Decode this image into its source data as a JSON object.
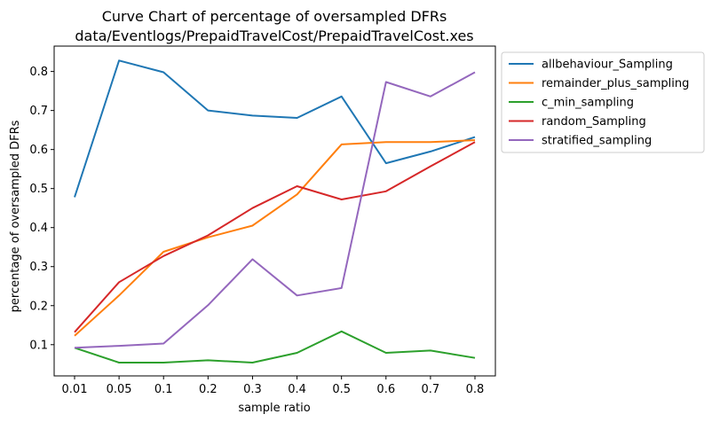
{
  "chart_data": {
    "type": "line",
    "title": "Curve Chart of percentage of oversampled DFRs",
    "subtitle": "data/Eventlogs/PrepaidTravelCost/PrepaidTravelCost.xes",
    "xlabel": "sample ratio",
    "ylabel": "percentage of oversampled DFRs",
    "categories": [
      "0.01",
      "0.05",
      "0.1",
      "0.2",
      "0.3",
      "0.4",
      "0.5",
      "0.6",
      "0.7",
      "0.8"
    ],
    "ylim": [
      0.02,
      0.865
    ],
    "yticks": [
      "0.1",
      "0.2",
      "0.3",
      "0.4",
      "0.5",
      "0.6",
      "0.7",
      "0.8"
    ],
    "grid": false,
    "legend_position": "outside-right",
    "series": [
      {
        "name": "allbehaviour_Sampling",
        "color": "#1f77b4",
        "values": [
          0.478,
          0.828,
          0.798,
          0.7,
          0.687,
          0.681,
          0.736,
          0.565,
          0.595,
          0.632
        ]
      },
      {
        "name": "remainder_plus_sampling",
        "color": "#ff7f0e",
        "values": [
          0.123,
          0.226,
          0.338,
          0.375,
          0.405,
          0.485,
          0.613,
          0.619,
          0.619,
          0.624
        ]
      },
      {
        "name": "c_min_sampling",
        "color": "#2ca02c",
        "values": [
          0.092,
          0.054,
          0.054,
          0.06,
          0.054,
          0.079,
          0.134,
          0.079,
          0.085,
          0.066
        ]
      },
      {
        "name": "random_Sampling",
        "color": "#d62728",
        "values": [
          0.132,
          0.26,
          0.327,
          0.38,
          0.45,
          0.506,
          0.472,
          0.493,
          0.557,
          0.619
        ]
      },
      {
        "name": "stratified_sampling",
        "color": "#9467bd",
        "values": [
          0.092,
          0.097,
          0.103,
          0.201,
          0.319,
          0.226,
          0.245,
          0.773,
          0.736,
          0.798
        ]
      }
    ]
  }
}
